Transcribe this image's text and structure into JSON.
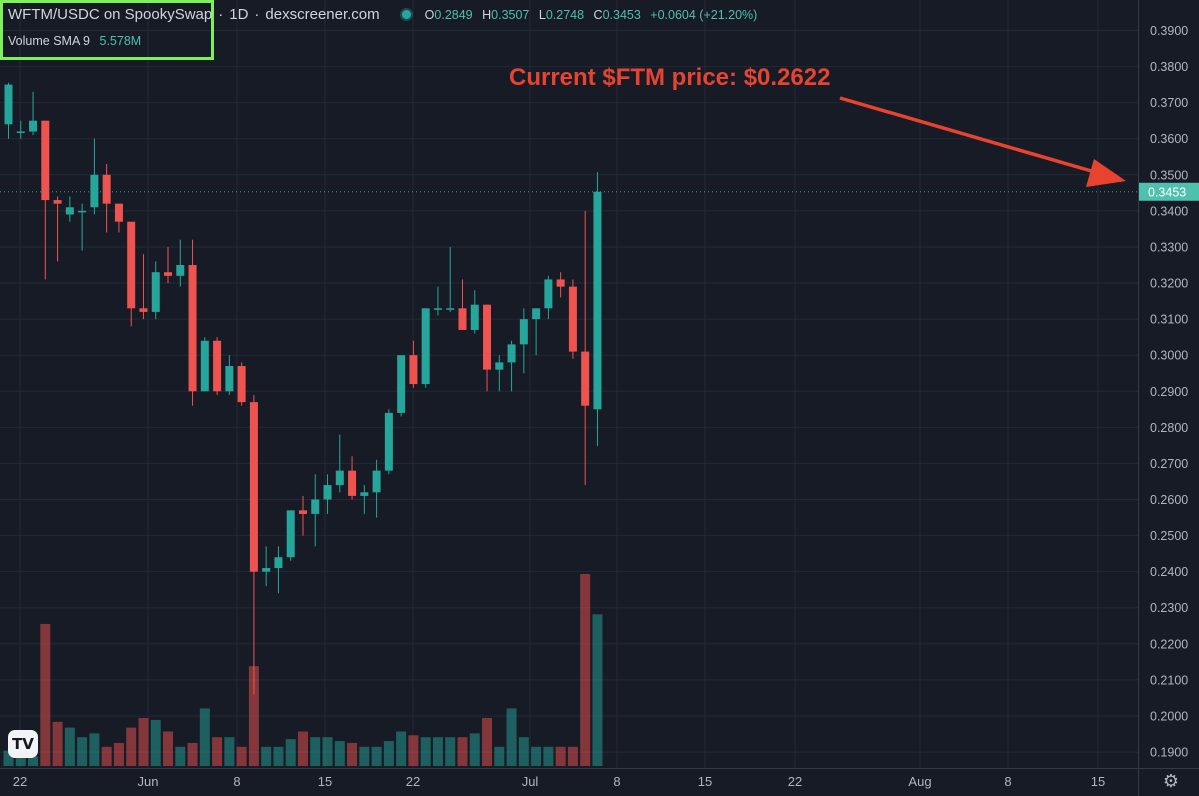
{
  "header": {
    "pair": "WFTM/USDC on SpookySwap",
    "interval": "1D",
    "source": "dexscreener.com",
    "ohlc": {
      "o_label": "O",
      "o": "0.2849",
      "h_label": "H",
      "h": "0.3507",
      "l_label": "L",
      "l": "0.2748",
      "c_label": "C",
      "c": "0.3453",
      "change": "+0.0604 (+21.20%)"
    }
  },
  "volume_row": {
    "label": "Volume",
    "sma": "SMA 9",
    "value": "5.578M"
  },
  "annotation": {
    "text": "Current $FTM price: $0.2622"
  },
  "colors": {
    "background": "#171b26",
    "up": "#26a69a",
    "down": "#ef5350",
    "annotation": "#e8432f",
    "highlight_box": "#7ef05a",
    "price_tag": "#4fbfae"
  },
  "icons": {
    "logo": "tradingview-logo-icon",
    "settings": "gear-icon"
  },
  "chart_data": {
    "type": "candlestick",
    "y_axis": {
      "range": [
        0.1878,
        0.3918
      ],
      "ticks": [
        "0.3900",
        "0.3800",
        "0.3700",
        "0.3600",
        "0.3500",
        "0.3400",
        "0.3300",
        "0.3200",
        "0.3100",
        "0.3000",
        "0.2900",
        "0.2800",
        "0.2700",
        "0.2600",
        "0.2500",
        "0.2400",
        "0.2300",
        "0.2200",
        "0.2100",
        "0.2000",
        "0.1900"
      ],
      "position": "right"
    },
    "x_axis": {
      "labels": [
        "22",
        "Jun",
        "8",
        "15",
        "22",
        "Jul",
        "8",
        "15",
        "22",
        "Aug",
        "8",
        "15"
      ]
    },
    "current_price": "0.3453",
    "grid": true,
    "series": {
      "ohlc": [
        [
          0.364,
          0.3755,
          0.36,
          0.375
        ],
        [
          0.362,
          0.365,
          0.36,
          0.362
        ],
        [
          0.362,
          0.373,
          0.361,
          0.365
        ],
        [
          0.365,
          0.365,
          0.321,
          0.343
        ],
        [
          0.343,
          0.344,
          0.326,
          0.342
        ],
        [
          0.339,
          0.344,
          0.337,
          0.341
        ],
        [
          0.34,
          0.342,
          0.329,
          0.34
        ],
        [
          0.341,
          0.36,
          0.339,
          0.35
        ],
        [
          0.35,
          0.353,
          0.334,
          0.342
        ],
        [
          0.342,
          0.342,
          0.334,
          0.337
        ],
        [
          0.337,
          0.337,
          0.308,
          0.313
        ],
        [
          0.313,
          0.328,
          0.31,
          0.312
        ],
        [
          0.312,
          0.326,
          0.31,
          0.323
        ],
        [
          0.323,
          0.33,
          0.32,
          0.322
        ],
        [
          0.322,
          0.332,
          0.319,
          0.325
        ],
        [
          0.325,
          0.332,
          0.286,
          0.29
        ],
        [
          0.29,
          0.305,
          0.29,
          0.304
        ],
        [
          0.304,
          0.305,
          0.289,
          0.29
        ],
        [
          0.29,
          0.3,
          0.289,
          0.297
        ],
        [
          0.297,
          0.298,
          0.286,
          0.287
        ],
        [
          0.287,
          0.289,
          0.206,
          0.24
        ],
        [
          0.24,
          0.247,
          0.236,
          0.241
        ],
        [
          0.241,
          0.247,
          0.234,
          0.244
        ],
        [
          0.244,
          0.257,
          0.243,
          0.257
        ],
        [
          0.257,
          0.261,
          0.25,
          0.256
        ],
        [
          0.256,
          0.267,
          0.247,
          0.26
        ],
        [
          0.26,
          0.267,
          0.256,
          0.264
        ],
        [
          0.264,
          0.278,
          0.262,
          0.268
        ],
        [
          0.268,
          0.272,
          0.26,
          0.261
        ],
        [
          0.261,
          0.264,
          0.256,
          0.262
        ],
        [
          0.262,
          0.271,
          0.255,
          0.268
        ],
        [
          0.268,
          0.285,
          0.267,
          0.284
        ],
        [
          0.284,
          0.299,
          0.283,
          0.3
        ],
        [
          0.3,
          0.304,
          0.291,
          0.292
        ],
        [
          0.292,
          0.313,
          0.291,
          0.313
        ],
        [
          0.313,
          0.319,
          0.311,
          0.313
        ],
        [
          0.313,
          0.33,
          0.312,
          0.313
        ],
        [
          0.313,
          0.321,
          0.308,
          0.307
        ],
        [
          0.307,
          0.318,
          0.306,
          0.314
        ],
        [
          0.314,
          0.314,
          0.29,
          0.296
        ],
        [
          0.296,
          0.3,
          0.29,
          0.298
        ],
        [
          0.298,
          0.304,
          0.29,
          0.303
        ],
        [
          0.303,
          0.313,
          0.295,
          0.31
        ],
        [
          0.31,
          0.313,
          0.3,
          0.313
        ],
        [
          0.313,
          0.322,
          0.31,
          0.321
        ],
        [
          0.321,
          0.323,
          0.316,
          0.319
        ],
        [
          0.319,
          0.321,
          0.299,
          0.301
        ],
        [
          0.301,
          0.34,
          0.264,
          0.286
        ],
        [
          0.285,
          0.3507,
          0.2748,
          0.3453
        ]
      ],
      "volume_relative": [
        0.08,
        0.05,
        0.05,
        0.74,
        0.23,
        0.2,
        0.15,
        0.17,
        0.1,
        0.12,
        0.2,
        0.25,
        0.24,
        0.18,
        0.1,
        0.12,
        0.3,
        0.15,
        0.15,
        0.1,
        0.52,
        0.1,
        0.1,
        0.14,
        0.18,
        0.15,
        0.15,
        0.13,
        0.12,
        0.1,
        0.1,
        0.13,
        0.18,
        0.16,
        0.15,
        0.15,
        0.15,
        0.15,
        0.17,
        0.25,
        0.1,
        0.3,
        0.15,
        0.1,
        0.1,
        0.1,
        0.1,
        1.0,
        0.79
      ]
    }
  }
}
